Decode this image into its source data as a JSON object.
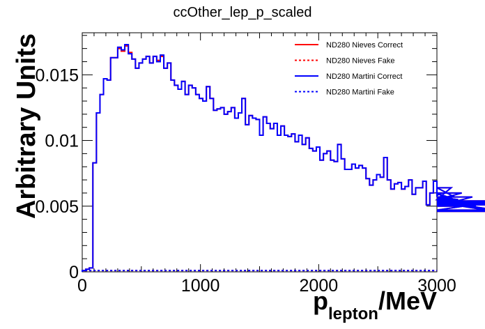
{
  "chart_data": {
    "type": "line",
    "title": "ccOther_lep_p_scaled",
    "xlabel_main": "p",
    "xlabel_sub": "lepton",
    "xlabel_unit": "/MeV",
    "ylabel": "Arbitrary Units",
    "xlim": [
      0,
      3000
    ],
    "ylim": [
      0,
      0.0182
    ],
    "x_ticks": [
      0,
      1000,
      2000,
      3000
    ],
    "x_tick_labels": [
      "0",
      "1000",
      "2000",
      "3000"
    ],
    "y_ticks": [
      0,
      0.005,
      0.01,
      0.015
    ],
    "y_tick_labels": [
      "0",
      "0.005",
      "0.01",
      "0.015"
    ],
    "bin_width": 30,
    "legend_position": "top-right",
    "grid": false,
    "series": [
      {
        "name": "ND280 Nieves Correct",
        "color": "#ff0000",
        "style": "solid",
        "values": [
          0.0001,
          0.0002,
          0.0003,
          0.0083,
          0.0121,
          0.0135,
          0.0147,
          0.0146,
          0.0163,
          0.0163,
          0.017,
          0.0168,
          0.0172,
          0.0167,
          0.0162,
          0.0155,
          0.0159,
          0.0162,
          0.0164,
          0.0159,
          0.0164,
          0.0161,
          0.0164,
          0.0155,
          0.0159,
          0.0146,
          0.0142,
          0.0139,
          0.0145,
          0.0135,
          0.0142,
          0.014,
          0.0135,
          0.0132,
          0.013,
          0.0141,
          0.0132,
          0.0123,
          0.0124,
          0.0125,
          0.012,
          0.0122,
          0.0125,
          0.0117,
          0.0121,
          0.0132,
          0.0112,
          0.0119,
          0.0117,
          0.0116,
          0.0104,
          0.0118,
          0.0113,
          0.0109,
          0.0113,
          0.0104,
          0.0111,
          0.0104,
          0.0103,
          0.0105,
          0.0099,
          0.0104,
          0.0097,
          0.0102,
          0.0094,
          0.0092,
          0.0095,
          0.0085,
          0.009,
          0.0092,
          0.0085,
          0.0084,
          0.0097,
          0.0086,
          0.0078,
          0.0078,
          0.0082,
          0.0079,
          0.0081,
          0.0079,
          0.0071,
          0.0066,
          0.007,
          0.0074,
          0.0072,
          0.0087,
          0.007,
          0.0063,
          0.0067,
          0.0068,
          0.0063,
          0.0065,
          0.007,
          0.0059,
          0.0064,
          0.0064,
          0.0069,
          0.0051,
          0.006,
          0.0069,
          0.0058,
          0.006,
          0.0057,
          0.0055,
          0.0064,
          0.0057,
          0.0055,
          0.006,
          0.0052,
          0.005,
          0.0057,
          0.005,
          0.0053,
          0.0053,
          0.0047,
          0.0053,
          0.0051,
          0.0052,
          0.0054,
          0.0046
        ]
      },
      {
        "name": "ND280 Nieves Fake",
        "color": "#ff0000",
        "style": "dashed",
        "values": [
          0.0001,
          0.0001,
          0.0001,
          0.0001,
          0.0001,
          0.0001,
          0.0001,
          0.0001,
          0.0001,
          0.0001,
          0.0001,
          0.0001,
          0.0001,
          0.0001,
          0.0001,
          0.0001,
          0.0001,
          0.0001,
          0.0001,
          0.0001,
          0.0001,
          0.0001,
          0.0001,
          0.0001,
          0.0001,
          0.0001,
          0.0001,
          0.0001,
          0.0001,
          0.0001,
          0.0001,
          0.0001,
          0.0001,
          0.0001,
          0.0001,
          0.0001,
          0.0001,
          0.0001,
          0.0001,
          0.0001,
          0.0001,
          0.0001,
          0.0001,
          0.0001,
          0.0001,
          0.0001,
          0.0001,
          0.0001,
          0.0001,
          0.0001,
          0.0001,
          0.0001,
          0.0001,
          0.0001,
          0.0001,
          0.0001,
          0.0001,
          0.0001,
          0.0001,
          0.0001,
          0.0001,
          0.0001,
          0.0001,
          0.0001,
          0.0001,
          0.0001,
          0.0001,
          0.0001,
          0.0001,
          0.0001,
          0.0001,
          0.0001,
          0.0001,
          0.0001,
          0.0001,
          0.0001,
          0.0001,
          0.0001,
          0.0001,
          0.0001,
          0.0001,
          0.0001,
          0.0001,
          0.0001,
          0.0001,
          0.0001,
          0.0001,
          0.0001,
          0.0001,
          0.0001,
          0.0001,
          0.0001,
          0.0001,
          0.0001,
          0.0001,
          0.0001,
          0.0001,
          0.0001,
          0.0001,
          0.0001
        ]
      },
      {
        "name": "ND280 Martini Correct",
        "color": "#0000ff",
        "style": "solid",
        "values": [
          0.0001,
          0.0002,
          0.0003,
          0.0083,
          0.0121,
          0.0135,
          0.0147,
          0.0146,
          0.0163,
          0.0163,
          0.0171,
          0.0169,
          0.0173,
          0.0166,
          0.0162,
          0.0155,
          0.0159,
          0.0162,
          0.0164,
          0.0159,
          0.0164,
          0.016,
          0.0165,
          0.0155,
          0.0159,
          0.0146,
          0.0142,
          0.0139,
          0.0145,
          0.0135,
          0.0142,
          0.014,
          0.0135,
          0.0132,
          0.013,
          0.0141,
          0.0132,
          0.0123,
          0.0124,
          0.0125,
          0.012,
          0.0122,
          0.0125,
          0.0117,
          0.0121,
          0.0132,
          0.0112,
          0.0119,
          0.0117,
          0.0116,
          0.0104,
          0.0118,
          0.0113,
          0.0109,
          0.0113,
          0.0104,
          0.0111,
          0.0104,
          0.0103,
          0.0105,
          0.0099,
          0.0104,
          0.0097,
          0.0102,
          0.0094,
          0.0092,
          0.0095,
          0.0085,
          0.009,
          0.0092,
          0.0085,
          0.0084,
          0.0097,
          0.0086,
          0.0078,
          0.0078,
          0.0082,
          0.0079,
          0.0081,
          0.0079,
          0.0071,
          0.0066,
          0.007,
          0.0074,
          0.0072,
          0.0087,
          0.007,
          0.0063,
          0.0067,
          0.0068,
          0.0063,
          0.0065,
          0.007,
          0.0059,
          0.0064,
          0.0064,
          0.0069,
          0.0051,
          0.006,
          0.0069,
          0.0058,
          0.006,
          0.0057,
          0.0055,
          0.0064,
          0.0057,
          0.0055,
          0.006,
          0.0052,
          0.005,
          0.0057,
          0.005,
          0.0053,
          0.0053,
          0.0047,
          0.0053,
          0.0051,
          0.0052,
          0.0054,
          0.0046
        ]
      },
      {
        "name": "ND280 Martini Fake",
        "color": "#0000ff",
        "style": "dashed",
        "values": [
          0.0001,
          0.0001,
          0.0001,
          0.0001,
          0.0001,
          0.0001,
          0.0001,
          0.0001,
          0.0001,
          0.0001,
          0.0001,
          0.0001,
          0.0001,
          0.0001,
          0.0001,
          0.0001,
          0.0001,
          0.0001,
          0.0001,
          0.0001,
          0.0001,
          0.0001,
          0.0001,
          0.0001,
          0.0001,
          0.0001,
          0.0001,
          0.0001,
          0.0001,
          0.0001,
          0.0001,
          0.0001,
          0.0001,
          0.0001,
          0.0001,
          0.0001,
          0.0001,
          0.0001,
          0.0001,
          0.0001,
          0.0001,
          0.0001,
          0.0001,
          0.0001,
          0.0001,
          0.0001,
          0.0001,
          0.0001,
          0.0001,
          0.0001,
          0.0001,
          0.0001,
          0.0001,
          0.0001,
          0.0001,
          0.0001,
          0.0001,
          0.0001,
          0.0001,
          0.0001,
          0.0001,
          0.0001,
          0.0001,
          0.0001,
          0.0001,
          0.0001,
          0.0001,
          0.0001,
          0.0001,
          0.0001,
          0.0001,
          0.0001,
          0.0001,
          0.0001,
          0.0001,
          0.0001,
          0.0001,
          0.0001,
          0.0001,
          0.0001,
          0.0001,
          0.0001,
          0.0001,
          0.0001,
          0.0001,
          0.0001,
          0.0001,
          0.0001,
          0.0001,
          0.0001,
          0.0001,
          0.0001,
          0.0001,
          0.0001,
          0.0001,
          0.0001,
          0.0001,
          0.0001,
          0.0001,
          0.0001
        ]
      }
    ]
  }
}
